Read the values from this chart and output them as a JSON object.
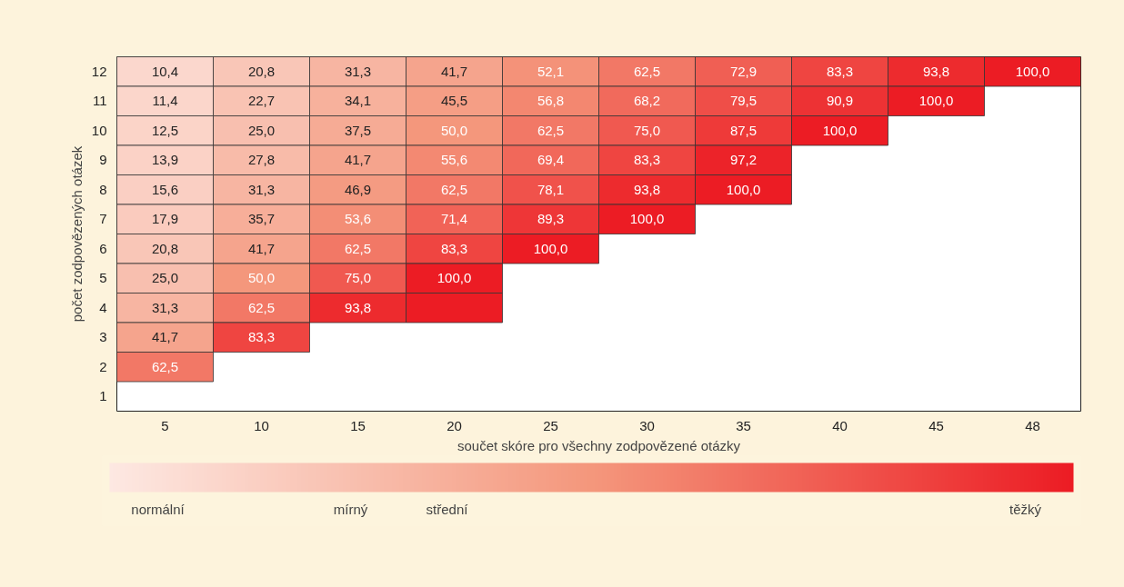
{
  "chart_data": {
    "type": "heatmap",
    "xlabel": "součet skóre pro všechny zodpovězené otázky",
    "ylabel": "počet zodpovězených otázek",
    "categories": [
      "5",
      "10",
      "15",
      "20",
      "25",
      "30",
      "35",
      "40",
      "45",
      "48"
    ],
    "y_categories": [
      "12",
      "11",
      "10",
      "9",
      "8",
      "7",
      "6",
      "5",
      "4",
      "3",
      "2",
      "1"
    ],
    "cells": [
      [
        10.4,
        20.8,
        31.3,
        41.7,
        52.1,
        62.5,
        72.9,
        83.3,
        93.8,
        100.0
      ],
      [
        11.4,
        22.7,
        34.1,
        45.5,
        56.8,
        68.2,
        79.5,
        90.9,
        100.0,
        null
      ],
      [
        12.5,
        25.0,
        37.5,
        50.0,
        62.5,
        75.0,
        87.5,
        100.0,
        null,
        null
      ],
      [
        13.9,
        27.8,
        41.7,
        55.6,
        69.4,
        83.3,
        97.2,
        null,
        null,
        null
      ],
      [
        15.6,
        31.3,
        46.9,
        62.5,
        78.1,
        93.8,
        100.0,
        null,
        null,
        null
      ],
      [
        17.9,
        35.7,
        53.6,
        71.4,
        89.3,
        100.0,
        null,
        null,
        null,
        null
      ],
      [
        20.8,
        41.7,
        62.5,
        83.3,
        100.0,
        null,
        null,
        null,
        null,
        null
      ],
      [
        25.0,
        50.0,
        75.0,
        100.0,
        null,
        null,
        null,
        null,
        null,
        null
      ],
      [
        31.3,
        62.5,
        93.8,
        100,
        null,
        null,
        null,
        null,
        null,
        null
      ],
      [
        41.7,
        83.3,
        null,
        null,
        null,
        null,
        null,
        null,
        null,
        null
      ],
      [
        62.5,
        null,
        null,
        null,
        null,
        null,
        null,
        null,
        null,
        null
      ],
      [
        null,
        null,
        null,
        null,
        null,
        null,
        null,
        null,
        null,
        null
      ]
    ],
    "cell_labels": [
      [
        "10,4",
        "20,8",
        "31,3",
        "41,7",
        "52,1",
        "62,5",
        "72,9",
        "83,3",
        "93,8",
        "100,0"
      ],
      [
        "11,4",
        "22,7",
        "34,1",
        "45,5",
        "56,8",
        "68,2",
        "79,5",
        "90,9",
        "100,0",
        null
      ],
      [
        "12,5",
        "25,0",
        "37,5",
        "50,0",
        "62,5",
        "75,0",
        "87,5",
        "100,0",
        null,
        null
      ],
      [
        "13,9",
        "27,8",
        "41,7",
        "55,6",
        "69,4",
        "83,3",
        "97,2",
        null,
        null,
        null
      ],
      [
        "15,6",
        "31,3",
        "46,9",
        "62,5",
        "78,1",
        "93,8",
        "100,0",
        null,
        null,
        null
      ],
      [
        "17,9",
        "35,7",
        "53,6",
        "71,4",
        "89,3",
        "100,0",
        null,
        null,
        null,
        null
      ],
      [
        "20,8",
        "41,7",
        "62,5",
        "83,3",
        "100,0",
        null,
        null,
        null,
        null,
        null
      ],
      [
        "25,0",
        "50,0",
        "75,0",
        "100,0",
        null,
        null,
        null,
        null,
        null,
        null
      ],
      [
        "31,3",
        "62,5",
        "93,8",
        null,
        null,
        null,
        null,
        null,
        null,
        null
      ],
      [
        "41,7",
        "83,3",
        null,
        null,
        null,
        null,
        null,
        null,
        null,
        null
      ],
      [
        "62,5",
        null,
        null,
        null,
        null,
        null,
        null,
        null,
        null,
        null
      ],
      [
        null,
        null,
        null,
        null,
        null,
        null,
        null,
        null,
        null,
        null
      ]
    ],
    "clim": [
      0,
      100
    ],
    "cticks": [
      {
        "value": 5,
        "label": "normální"
      },
      {
        "value": 25,
        "label": "mírný"
      },
      {
        "value": 35,
        "label": "střední"
      },
      {
        "value": 95,
        "label": "těžký"
      }
    ]
  }
}
